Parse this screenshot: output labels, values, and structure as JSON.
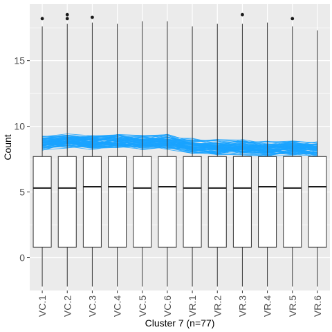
{
  "chart_data": {
    "type": "box",
    "title": "",
    "xlabel": "Cluster 7 (n=77)",
    "ylabel": "Count",
    "ylim": [
      -2.5,
      19.3
    ],
    "y_ticks": [
      0,
      5,
      10,
      15
    ],
    "y_tick_labels": [
      "0",
      "5",
      "10",
      "15"
    ],
    "grid": true,
    "categories": [
      "VC.1",
      "VC.2",
      "VC.3",
      "VC.4",
      "VC.5",
      "VC.6",
      "VR.1",
      "VR.2",
      "VR.3",
      "VR.4",
      "VR.5",
      "VR.6"
    ],
    "boxes": [
      {
        "category": "VC.1",
        "whisker_low": -2.2,
        "q1": 0.8,
        "median": 5.3,
        "q3": 7.7,
        "whisker_high": 17.6,
        "outliers": [
          18.2
        ]
      },
      {
        "category": "VC.2",
        "whisker_low": -2.2,
        "q1": 0.8,
        "median": 5.3,
        "q3": 7.7,
        "whisker_high": 17.8,
        "outliers": [
          18.2,
          18.5
        ]
      },
      {
        "category": "VC.3",
        "whisker_low": -2.2,
        "q1": 0.8,
        "median": 5.4,
        "q3": 7.7,
        "whisker_high": 17.9,
        "outliers": [
          18.3
        ]
      },
      {
        "category": "VC.4",
        "whisker_low": -2.2,
        "q1": 0.8,
        "median": 5.4,
        "q3": 7.7,
        "whisker_high": 17.8,
        "outliers": []
      },
      {
        "category": "VC.5",
        "whisker_low": -2.2,
        "q1": 0.8,
        "median": 5.3,
        "q3": 7.7,
        "whisker_high": 18.0,
        "outliers": []
      },
      {
        "category": "VC.6",
        "whisker_low": -2.2,
        "q1": 0.8,
        "median": 5.4,
        "q3": 7.7,
        "whisker_high": 18.0,
        "outliers": []
      },
      {
        "category": "VR.1",
        "whisker_low": -2.2,
        "q1": 0.8,
        "median": 5.3,
        "q3": 7.7,
        "whisker_high": 17.6,
        "outliers": []
      },
      {
        "category": "VR.2",
        "whisker_low": -2.2,
        "q1": 0.8,
        "median": 5.3,
        "q3": 7.7,
        "whisker_high": 17.8,
        "outliers": []
      },
      {
        "category": "VR.3",
        "whisker_low": -2.2,
        "q1": 0.8,
        "median": 5.3,
        "q3": 7.7,
        "whisker_high": 17.8,
        "outliers": [
          18.5
        ]
      },
      {
        "category": "VR.4",
        "whisker_low": -2.2,
        "q1": 0.8,
        "median": 5.4,
        "q3": 7.7,
        "whisker_high": 17.9,
        "outliers": []
      },
      {
        "category": "VR.5",
        "whisker_low": -2.2,
        "q1": 0.8,
        "median": 5.3,
        "q3": 7.7,
        "whisker_high": 17.6,
        "outliers": [
          18.2
        ]
      },
      {
        "category": "VR.6",
        "whisker_low": -2.2,
        "q1": 0.8,
        "median": 5.4,
        "q3": 7.7,
        "whisker_high": 17.3,
        "outliers": []
      }
    ],
    "profile_lines": {
      "count": 77,
      "color": "#1aa3ff",
      "mean_values": [
        8.7,
        8.9,
        8.8,
        8.9,
        8.8,
        8.8,
        8.5,
        8.4,
        8.4,
        8.3,
        8.4,
        8.3
      ],
      "spread": 0.35
    },
    "colors": {
      "panel": "#ebebeb",
      "grid": "#ffffff",
      "box_fill": "#ffffff",
      "box_stroke": "#333333"
    }
  }
}
